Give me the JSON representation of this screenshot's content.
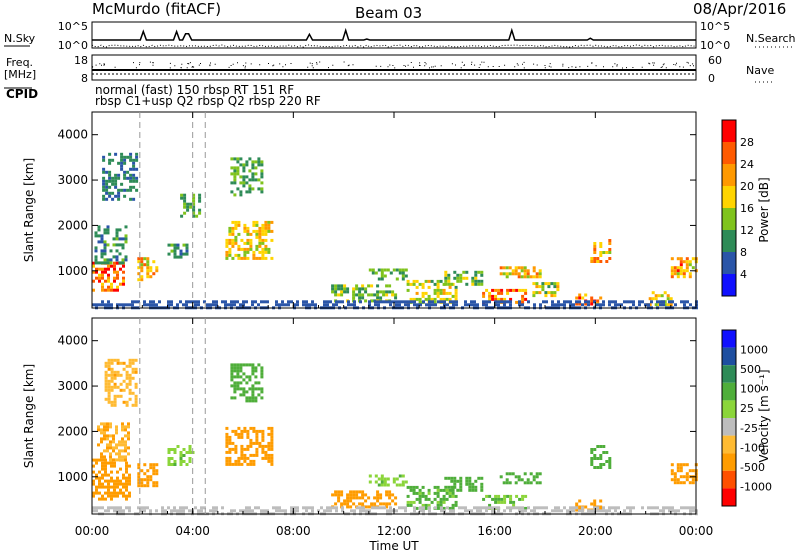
{
  "header": {
    "station": "McMurdo (fitACF)",
    "beam": "Beam 03",
    "date": "08/Apr/2016"
  },
  "noise_panel": {
    "left_label": "N.Sky",
    "right_label": "N.Search",
    "left_ticks": [
      "10^5",
      "10^0"
    ],
    "right_ticks": [
      "10^5",
      "10^0"
    ]
  },
  "freq_panel": {
    "left_label_line1": "Freq.",
    "left_label_line2": "[MHz]",
    "left_ticks": [
      "18",
      "8"
    ],
    "right_label": "Nave",
    "right_ticks": [
      "60",
      "0"
    ]
  },
  "cpid": {
    "label": "CPID",
    "line1": "normal (fast) 150 rbsp RT 151 RF",
    "line2": "rbsp C1+usp Q2 rbsp Q2 rbsp 220 RF"
  },
  "x_axis": {
    "ticks": [
      "00:00",
      "04:00",
      "08:00",
      "12:00",
      "16:00",
      "20:00",
      "00:00"
    ],
    "label": "Time UT"
  },
  "colors": {
    "power_scale": [
      "#1010ff",
      "#2a55a8",
      "#2e8b57",
      "#7fc31c",
      "#ffd400",
      "#ff9900",
      "#ff5a00",
      "#ff0000"
    ],
    "velocity_scale": [
      "#ff0000",
      "#ff5000",
      "#ff9c00",
      "#ffbb33",
      "#bdbdbd",
      "#8bd53a",
      "#4fae3a",
      "#2e8b57",
      "#1e4fa0",
      "#1010ff"
    ]
  },
  "chart_data": [
    {
      "type": "heatmap",
      "panel": "power",
      "ylabel": "Slant Range [km]",
      "xlabel": "Time UT",
      "x_range_hours": [
        0,
        24
      ],
      "ylim": [
        180,
        4500
      ],
      "yticks": [
        1000,
        2000,
        3000,
        4000
      ],
      "colorbar": {
        "label": "Power [dB]",
        "range": [
          0,
          32
        ],
        "ticks": [
          "4",
          "8",
          "12",
          "16",
          "20",
          "24",
          "28"
        ]
      },
      "regions": [
        {
          "t0": 0.0,
          "t1": 1.2,
          "r0": 600,
          "r1": 1200,
          "value": 24
        },
        {
          "t0": 0.1,
          "t1": 1.3,
          "r0": 1200,
          "r1": 2000,
          "value": 10
        },
        {
          "t0": 0.4,
          "t1": 1.8,
          "r0": 2600,
          "r1": 3600,
          "value": 9
        },
        {
          "t0": 1.8,
          "t1": 2.6,
          "r0": 800,
          "r1": 1300,
          "value": 20
        },
        {
          "t0": 3.0,
          "t1": 3.8,
          "r0": 1300,
          "r1": 1600,
          "value": 10
        },
        {
          "t0": 3.5,
          "t1": 4.3,
          "r0": 2200,
          "r1": 2700,
          "value": 12
        },
        {
          "t0": 5.3,
          "t1": 7.1,
          "r0": 1300,
          "r1": 2100,
          "value": 18
        },
        {
          "t0": 5.5,
          "t1": 6.7,
          "r0": 2700,
          "r1": 3500,
          "value": 12
        },
        {
          "t0": 9.5,
          "t1": 12.1,
          "r0": 350,
          "r1": 700,
          "value": 14
        },
        {
          "t0": 11.0,
          "t1": 12.5,
          "r0": 850,
          "r1": 1050,
          "value": 12
        },
        {
          "t0": 12.5,
          "t1": 14.5,
          "r0": 300,
          "r1": 800,
          "value": 16
        },
        {
          "t0": 14.0,
          "t1": 15.5,
          "r0": 700,
          "r1": 1000,
          "value": 14
        },
        {
          "t0": 15.5,
          "t1": 17.2,
          "r0": 300,
          "r1": 600,
          "value": 24
        },
        {
          "t0": 16.2,
          "t1": 17.8,
          "r0": 900,
          "r1": 1100,
          "value": 20
        },
        {
          "t0": 17.5,
          "t1": 18.5,
          "r0": 450,
          "r1": 750,
          "value": 16
        },
        {
          "t0": 19.2,
          "t1": 20.2,
          "r0": 250,
          "r1": 500,
          "value": 24
        },
        {
          "t0": 19.8,
          "t1": 20.6,
          "r0": 1200,
          "r1": 1700,
          "value": 20
        },
        {
          "t0": 22.0,
          "t1": 23.0,
          "r0": 250,
          "r1": 550,
          "value": 18
        },
        {
          "t0": 23.0,
          "t1": 24.0,
          "r0": 900,
          "r1": 1300,
          "value": 22
        },
        {
          "t0": 0.0,
          "t1": 24.0,
          "r0": 180,
          "r1": 350,
          "value": 6
        }
      ]
    },
    {
      "type": "heatmap",
      "panel": "velocity",
      "ylabel": "Slant Range [km]",
      "xlabel": "Time UT",
      "x_range_hours": [
        0,
        24
      ],
      "ylim": [
        180,
        4500
      ],
      "yticks": [
        1000,
        2000,
        3000,
        4000
      ],
      "colorbar": {
        "label": "Velocity [m s⁻¹]",
        "ticks": [
          "1000",
          "500",
          "100",
          "25",
          "-25",
          "-100",
          "-500",
          "-1000"
        ]
      },
      "regions": [
        {
          "t0": 0.0,
          "t1": 1.5,
          "r0": 500,
          "r1": 1400,
          "value": -300
        },
        {
          "t0": 0.2,
          "t1": 1.4,
          "r0": 1400,
          "r1": 2200,
          "value": -100
        },
        {
          "t0": 0.5,
          "t1": 1.8,
          "r0": 2600,
          "r1": 3600,
          "value": -80
        },
        {
          "t0": 1.8,
          "t1": 2.6,
          "r0": 800,
          "r1": 1300,
          "value": -200
        },
        {
          "t0": 3.0,
          "t1": 4.0,
          "r0": 1300,
          "r1": 1700,
          "value": 80
        },
        {
          "t0": 5.3,
          "t1": 7.1,
          "r0": 1300,
          "r1": 2100,
          "value": -300
        },
        {
          "t0": 5.5,
          "t1": 6.7,
          "r0": 2700,
          "r1": 3500,
          "value": 150
        },
        {
          "t0": 9.5,
          "t1": 12.1,
          "r0": 350,
          "r1": 700,
          "value": -150
        },
        {
          "t0": 11.0,
          "t1": 12.5,
          "r0": 850,
          "r1": 1050,
          "value": 80
        },
        {
          "t0": 12.5,
          "t1": 14.5,
          "r0": 300,
          "r1": 800,
          "value": 120
        },
        {
          "t0": 14.0,
          "t1": 15.5,
          "r0": 700,
          "r1": 1000,
          "value": 150
        },
        {
          "t0": 15.5,
          "t1": 17.2,
          "r0": 300,
          "r1": 600,
          "value": 100
        },
        {
          "t0": 16.2,
          "t1": 17.8,
          "r0": 900,
          "r1": 1100,
          "value": 200
        },
        {
          "t0": 19.2,
          "t1": 20.2,
          "r0": 250,
          "r1": 500,
          "value": -200
        },
        {
          "t0": 19.8,
          "t1": 20.6,
          "r0": 1200,
          "r1": 1700,
          "value": 200
        },
        {
          "t0": 23.0,
          "t1": 24.0,
          "r0": 900,
          "r1": 1300,
          "value": -300
        },
        {
          "t0": 0.0,
          "t1": 24.0,
          "r0": 180,
          "r1": 350,
          "value": 10
        }
      ]
    }
  ]
}
